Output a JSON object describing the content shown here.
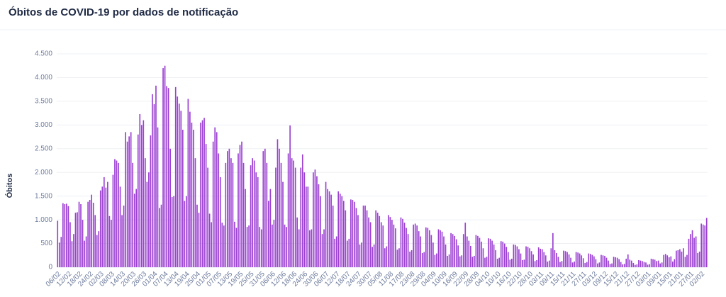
{
  "chart_data": {
    "type": "bar",
    "title": "Óbitos de COVID-19 por dados de notificação",
    "y_label": "Óbitos",
    "color": "#9b40d1",
    "grid": true,
    "ylim": [
      0,
      4500
    ],
    "yticks": [
      0,
      500,
      {
        "value": 1000,
        "label": "1.000"
      },
      {
        "value": 1500,
        "label": "1.500"
      },
      {
        "value": 2000,
        "label": "2.000"
      },
      {
        "value": 2500,
        "label": "2.500"
      },
      {
        "value": 3000,
        "label": "3.000"
      },
      {
        "value": 3500,
        "label": "3.500"
      },
      {
        "value": 4000,
        "label": "4.000"
      },
      {
        "value": 4500,
        "label": "4.500"
      }
    ],
    "categories": [
      "06/02",
      null,
      null,
      null,
      null,
      null,
      "12/02",
      null,
      null,
      null,
      null,
      null,
      "18/02",
      null,
      null,
      null,
      null,
      null,
      "24/02",
      null,
      null,
      null,
      null,
      null,
      "02/03",
      null,
      null,
      null,
      null,
      null,
      "08/03",
      null,
      null,
      null,
      null,
      null,
      "14/03",
      null,
      null,
      null,
      null,
      null,
      "20/03",
      null,
      null,
      null,
      null,
      null,
      "26/03",
      null,
      null,
      null,
      null,
      null,
      "01/04",
      null,
      null,
      null,
      null,
      null,
      "07/04",
      null,
      null,
      null,
      null,
      null,
      "13/04",
      null,
      null,
      null,
      null,
      null,
      "19/04",
      null,
      null,
      null,
      null,
      null,
      "25/04",
      null,
      null,
      null,
      null,
      null,
      "01/05",
      null,
      null,
      null,
      null,
      null,
      "07/05",
      null,
      null,
      null,
      null,
      null,
      "13/05",
      null,
      null,
      null,
      null,
      null,
      "19/05",
      null,
      null,
      null,
      null,
      null,
      "25/05",
      null,
      null,
      null,
      null,
      null,
      "31/05",
      null,
      null,
      null,
      null,
      null,
      "06/06",
      null,
      null,
      null,
      null,
      null,
      "12/06",
      null,
      null,
      null,
      null,
      null,
      "18/06",
      null,
      null,
      null,
      null,
      null,
      "24/06",
      null,
      null,
      null,
      null,
      null,
      "30/06",
      null,
      null,
      null,
      null,
      null,
      "06/07",
      null,
      null,
      null,
      null,
      null,
      "12/07",
      null,
      null,
      null,
      null,
      null,
      "18/07",
      null,
      null,
      null,
      null,
      null,
      "24/07",
      null,
      null,
      null,
      null,
      null,
      "30/07",
      null,
      null,
      null,
      null,
      null,
      "05/08",
      null,
      null,
      null,
      null,
      null,
      "11/08",
      null,
      null,
      null,
      null,
      null,
      "17/08",
      null,
      null,
      null,
      null,
      null,
      "23/08",
      null,
      null,
      null,
      null,
      null,
      "29/08",
      null,
      null,
      null,
      null,
      null,
      "04/09",
      null,
      null,
      null,
      null,
      null,
      "10/09",
      null,
      null,
      null,
      null,
      null,
      "16/09",
      null,
      null,
      null,
      null,
      null,
      "22/09",
      null,
      null,
      null,
      null,
      null,
      "28/09",
      null,
      null,
      null,
      null,
      null,
      "04/10",
      null,
      null,
      null,
      null,
      null,
      "10/10",
      null,
      null,
      null,
      null,
      null,
      "16/10",
      null,
      null,
      null,
      null,
      null,
      "22/10",
      null,
      null,
      null,
      null,
      null,
      "28/10",
      null,
      null,
      null,
      null,
      null,
      "03/11",
      null,
      null,
      null,
      null,
      null,
      "09/11",
      null,
      null,
      null,
      null,
      null,
      "15/11",
      null,
      null,
      null,
      null,
      null,
      "21/11",
      null,
      null,
      null,
      null,
      null,
      "27/11",
      null,
      null,
      null,
      null,
      null,
      "03/12",
      null,
      null,
      null,
      null,
      null,
      "09/12",
      null,
      null,
      null,
      null,
      null,
      "15/12",
      null,
      null,
      null,
      null,
      null,
      "21/12",
      null,
      null,
      null,
      null,
      null,
      "27/12",
      null,
      null,
      null,
      null,
      null,
      "03/01",
      null,
      null,
      null,
      null,
      null,
      "09/01",
      null,
      null,
      null,
      null,
      null,
      "15/01",
      null,
      null,
      null,
      null,
      null,
      "21/01",
      null,
      null,
      null,
      null,
      null,
      "27/01",
      null,
      null,
      null,
      null,
      null,
      "02/02",
      null,
      null,
      null
    ],
    "values": [
      980,
      520,
      640,
      1350,
      1330,
      1340,
      1290,
      950,
      550,
      700,
      1150,
      1160,
      1380,
      1330,
      1000,
      560,
      650,
      1380,
      1420,
      1530,
      1360,
      1100,
      680,
      760,
      1620,
      1700,
      1900,
      1680,
      1800,
      1080,
      1000,
      1950,
      2280,
      2250,
      2200,
      1700,
      1100,
      1300,
      2850,
      2650,
      2760,
      2850,
      2200,
      1550,
      1650,
      2800,
      3230,
      3000,
      3100,
      2300,
      1800,
      2000,
      2780,
      3650,
      3440,
      3830,
      2950,
      1250,
      1320,
      4200,
      4250,
      3820,
      3780,
      2500,
      1480,
      1500,
      3800,
      3600,
      3450,
      3300,
      2900,
      1400,
      1500,
      3550,
      3280,
      3050,
      2900,
      2300,
      1320,
      1150,
      3050,
      3100,
      3150,
      2600,
      2100,
      1130,
      950,
      2650,
      2950,
      2850,
      2400,
      1900,
      940,
      880,
      2200,
      2450,
      2500,
      2300,
      2200,
      960,
      830,
      2400,
      2580,
      2650,
      2200,
      1650,
      850,
      880,
      2150,
      2300,
      2250,
      2000,
      1900,
      850,
      800,
      2450,
      2500,
      2200,
      1400,
      1650,
      900,
      1000,
      2100,
      2700,
      2500,
      2200,
      1800,
      900,
      850,
      2400,
      2990,
      2300,
      2250,
      2100,
      1050,
      800,
      2100,
      2380,
      2000,
      1700,
      1700,
      780,
      800,
      2000,
      2060,
      1920,
      1750,
      1500,
      700,
      800,
      1800,
      1650,
      1600,
      1530,
      1300,
      600,
      650,
      1600,
      1550,
      1500,
      1400,
      1200,
      560,
      600,
      1430,
      1420,
      1380,
      1250,
      1100,
      480,
      520,
      1300,
      1300,
      1200,
      1050,
      950,
      430,
      480,
      1200,
      1150,
      1080,
      950,
      880,
      400,
      440,
      1100,
      1060,
      1000,
      900,
      820,
      370,
      400,
      1050,
      1020,
      940,
      830,
      700,
      330,
      360,
      900,
      920,
      880,
      760,
      650,
      300,
      320,
      840,
      830,
      780,
      680,
      520,
      260,
      290,
      800,
      780,
      750,
      650,
      480,
      240,
      270,
      720,
      700,
      660,
      590,
      460,
      230,
      250,
      700,
      940,
      650,
      560,
      450,
      220,
      240,
      680,
      660,
      620,
      540,
      400,
      200,
      220,
      610,
      600,
      560,
      480,
      360,
      180,
      200,
      550,
      540,
      500,
      430,
      320,
      160,
      180,
      480,
      470,
      440,
      380,
      290,
      150,
      160,
      440,
      430,
      400,
      340,
      270,
      130,
      150,
      420,
      390,
      380,
      320,
      250,
      120,
      140,
      400,
      720,
      360,
      300,
      220,
      110,
      130,
      350,
      340,
      320,
      270,
      200,
      100,
      120,
      320,
      310,
      290,
      250,
      190,
      90,
      110,
      290,
      280,
      260,
      230,
      170,
      80,
      100,
      260,
      250,
      240,
      200,
      140,
      70,
      80,
      220,
      210,
      200,
      170,
      110,
      60,
      70,
      180,
      270,
      160,
      140,
      90,
      50,
      60,
      150,
      140,
      130,
      110,
      100,
      55,
      65,
      180,
      170,
      160,
      130,
      140,
      80,
      100,
      260,
      280,
      250,
      210,
      230,
      120,
      170,
      350,
      360,
      380,
      330,
      400,
      220,
      260,
      600,
      700,
      780,
      620,
      650,
      300,
      330,
      920,
      900,
      880,
      1040
    ]
  }
}
